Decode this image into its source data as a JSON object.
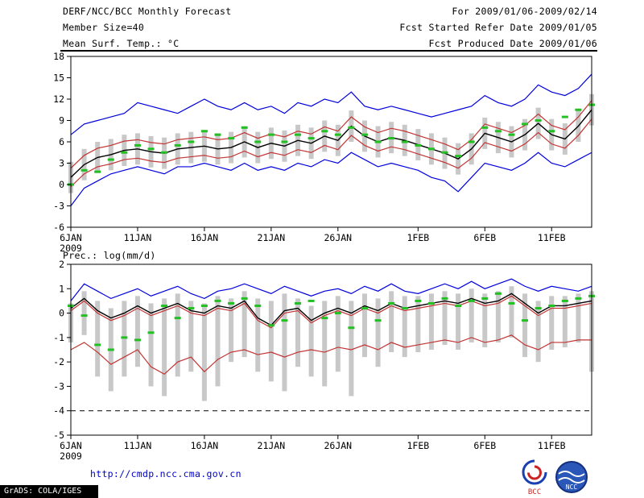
{
  "header": {
    "title": "DERF/NCC/BCC Monthly Forecast",
    "member_size": "Member Size=40",
    "top_var_label": "Mean Surf. Temp.: °C",
    "for_range": "For 2009/01/06-2009/02/14",
    "fcst_started": "Fcst Started Refer Date 2009/01/05",
    "fcst_produced": "Fcst Produced Date 2009/01/06"
  },
  "bottom_var_label": "Prec.: log(mm/d)",
  "footer": {
    "url": "http://cmdp.ncc.cma.gov.cn",
    "grads_credit": "GrADS: COLA/IGES",
    "logo_bcc": "BCC",
    "logo_ncc": "NCC"
  },
  "colors": {
    "envelope": "#0000dd",
    "std_band": "#c23333",
    "mean": "#000000",
    "observation": "#22c022",
    "spread_bar": "#c8c8c8"
  },
  "chart_data": [
    {
      "type": "line",
      "title": "Mean Surf. Temp.: °C",
      "ylabel": "°C",
      "ylim": [
        -6,
        18
      ],
      "yticks": [
        18,
        15,
        12,
        9,
        6,
        3,
        0,
        -3,
        -6
      ],
      "n_days": 40,
      "x_ticks": [
        {
          "label": "6JAN",
          "sub": "2009",
          "day": 0
        },
        {
          "label": "11JAN",
          "day": 5
        },
        {
          "label": "16JAN",
          "day": 10
        },
        {
          "label": "21JAN",
          "day": 15
        },
        {
          "label": "26JAN",
          "day": 20
        },
        {
          "label": "1FEB",
          "day": 26
        },
        {
          "label": "6FEB",
          "day": 31
        },
        {
          "label": "11FEB",
          "day": 36
        }
      ],
      "bars": {
        "name": "ensemble-spread",
        "color": "#c8c8c8",
        "low": [
          -1.2,
          0.6,
          1.6,
          2.0,
          2.6,
          2.8,
          2.4,
          2.2,
          2.8,
          3.0,
          3.2,
          2.8,
          3.0,
          3.8,
          3.0,
          3.6,
          3.2,
          4.0,
          3.6,
          4.6,
          4.0,
          6.0,
          4.6,
          3.8,
          4.4,
          4.0,
          3.4,
          2.8,
          2.2,
          1.4,
          2.8,
          5.0,
          4.4,
          3.8,
          4.8,
          6.4,
          4.8,
          4.2,
          6.0,
          8.3
        ],
        "high": [
          3.2,
          5.0,
          6.0,
          6.4,
          7.0,
          7.2,
          6.8,
          6.6,
          7.2,
          7.4,
          7.6,
          7.2,
          7.4,
          8.2,
          7.4,
          8.0,
          7.6,
          8.4,
          8.0,
          9.0,
          8.4,
          10.4,
          9.0,
          8.2,
          8.8,
          8.4,
          7.8,
          7.2,
          6.6,
          5.8,
          7.2,
          9.4,
          8.8,
          8.2,
          9.2,
          10.8,
          9.2,
          8.6,
          10.4,
          12.7
        ]
      },
      "series": [
        {
          "name": "ensemble-max",
          "color": "#0000dd",
          "width": 1.2,
          "values": [
            7.0,
            8.5,
            9.0,
            9.5,
            10.0,
            11.5,
            11.0,
            10.5,
            10.0,
            11.0,
            12.0,
            11.0,
            10.5,
            11.5,
            10.5,
            11.0,
            10.0,
            11.5,
            11.0,
            12.0,
            11.5,
            13.0,
            11.0,
            10.5,
            11.0,
            10.5,
            10.0,
            9.5,
            10.0,
            10.5,
            11.0,
            12.5,
            11.5,
            11.0,
            12.0,
            14.0,
            13.0,
            12.5,
            13.5,
            15.5
          ]
        },
        {
          "name": "upper-std",
          "color": "#c23333",
          "width": 1.2,
          "values": [
            2.3,
            4.1,
            5.1,
            5.5,
            6.1,
            6.3,
            5.9,
            5.7,
            6.3,
            6.5,
            6.7,
            6.3,
            6.5,
            7.3,
            6.5,
            7.1,
            6.7,
            7.5,
            7.1,
            8.1,
            7.5,
            9.5,
            8.1,
            7.3,
            7.9,
            7.5,
            6.9,
            6.3,
            5.7,
            4.9,
            6.3,
            8.5,
            7.9,
            7.3,
            8.3,
            9.9,
            8.3,
            7.7,
            9.5,
            11.8
          ]
        },
        {
          "name": "ensemble-mean",
          "color": "#000000",
          "width": 1.4,
          "values": [
            1.0,
            2.8,
            3.8,
            4.2,
            4.8,
            5.0,
            4.6,
            4.4,
            5.0,
            5.2,
            5.4,
            5.0,
            5.2,
            6.0,
            5.2,
            5.8,
            5.4,
            6.2,
            5.8,
            6.8,
            6.2,
            8.2,
            6.8,
            6.0,
            6.6,
            6.2,
            5.6,
            5.0,
            4.4,
            3.6,
            5.0,
            7.2,
            6.6,
            6.0,
            7.0,
            8.6,
            7.0,
            6.4,
            8.2,
            10.5
          ]
        },
        {
          "name": "lower-std",
          "color": "#c23333",
          "width": 1.2,
          "values": [
            -0.3,
            1.5,
            2.5,
            2.9,
            3.5,
            3.7,
            3.3,
            3.1,
            3.7,
            3.9,
            4.1,
            3.7,
            3.9,
            4.7,
            3.9,
            4.5,
            4.1,
            4.9,
            4.5,
            5.5,
            4.9,
            6.9,
            5.5,
            4.7,
            5.3,
            4.9,
            4.3,
            3.7,
            3.1,
            2.3,
            3.7,
            5.9,
            5.3,
            4.7,
            5.7,
            7.3,
            5.7,
            5.1,
            6.9,
            9.2
          ]
        },
        {
          "name": "ensemble-min",
          "color": "#0000dd",
          "width": 1.2,
          "values": [
            -3.0,
            -0.5,
            0.5,
            1.5,
            2.0,
            2.5,
            2.0,
            1.5,
            2.5,
            2.5,
            3.0,
            2.5,
            2.0,
            3.0,
            2.0,
            2.5,
            2.0,
            3.0,
            2.5,
            3.5,
            3.0,
            4.5,
            3.5,
            2.5,
            3.0,
            2.5,
            2.0,
            1.0,
            0.5,
            -1.0,
            1.0,
            3.0,
            2.5,
            2.0,
            3.0,
            4.5,
            3.0,
            2.5,
            3.5,
            4.5
          ]
        }
      ],
      "markers": {
        "name": "observation",
        "color": "#22c022",
        "values": [
          0.0,
          2.0,
          1.8,
          3.5,
          4.5,
          5.5,
          5.0,
          4.5,
          5.5,
          6.0,
          7.5,
          7.0,
          6.5,
          8.0,
          6.0,
          7.0,
          6.0,
          7.0,
          6.5,
          7.5,
          7.0,
          8.0,
          7.0,
          6.0,
          6.5,
          6.0,
          5.5,
          5.0,
          4.5,
          4.0,
          6.0,
          8.0,
          7.5,
          7.0,
          8.5,
          9.0,
          7.5,
          9.5,
          10.5,
          11.2
        ]
      }
    },
    {
      "type": "line",
      "title": "Prec.: log(mm/d)",
      "ylabel": "log(mm/d)",
      "ylim": [
        -5,
        2
      ],
      "yticks": [
        2,
        1,
        0,
        -1,
        -2,
        -3,
        -4,
        -5
      ],
      "dashed_line_y": -4,
      "n_days": 40,
      "x_ticks": [
        {
          "label": "6JAN",
          "sub": "2009",
          "day": 0
        },
        {
          "label": "11JAN",
          "day": 5
        },
        {
          "label": "16JAN",
          "day": 10
        },
        {
          "label": "21JAN",
          "day": 15
        },
        {
          "label": "26JAN",
          "day": 20
        },
        {
          "label": "1FEB",
          "day": 26
        },
        {
          "label": "6FEB",
          "day": 31
        },
        {
          "label": "11FEB",
          "day": 36
        }
      ],
      "bars": {
        "name": "ensemble-spread",
        "color": "#c8c8c8",
        "low": [
          -1.2,
          -0.9,
          -2.6,
          -3.2,
          -2.6,
          -2.2,
          -3.0,
          -3.4,
          -2.6,
          -2.4,
          -3.6,
          -3.0,
          -2.0,
          -1.8,
          -2.4,
          -2.8,
          -3.2,
          -2.2,
          -2.6,
          -3.0,
          -2.4,
          -3.4,
          -1.8,
          -2.2,
          -1.6,
          -1.8,
          -1.6,
          -1.5,
          -1.3,
          -1.5,
          -1.2,
          -1.4,
          -1.2,
          -1.0,
          -1.8,
          -2.0,
          -1.5,
          -1.4,
          -1.2,
          -2.4
        ],
        "high": [
          0.4,
          0.9,
          0.5,
          0.2,
          0.5,
          0.7,
          0.4,
          0.6,
          0.8,
          0.5,
          0.4,
          0.7,
          0.6,
          0.9,
          0.6,
          0.5,
          0.8,
          0.6,
          0.3,
          0.5,
          0.7,
          0.5,
          0.8,
          0.6,
          0.9,
          0.7,
          0.7,
          0.8,
          0.9,
          0.8,
          1.0,
          0.8,
          0.9,
          1.1,
          0.8,
          0.5,
          0.7,
          0.7,
          0.8,
          0.9
        ]
      },
      "series": [
        {
          "name": "ensemble-max",
          "color": "#0000dd",
          "width": 1.2,
          "values": [
            0.5,
            1.2,
            0.9,
            0.6,
            0.8,
            1.0,
            0.7,
            0.9,
            1.1,
            0.8,
            0.6,
            0.9,
            1.0,
            1.2,
            1.0,
            0.8,
            1.1,
            0.9,
            0.7,
            0.9,
            1.0,
            0.8,
            1.1,
            0.9,
            1.2,
            0.9,
            0.8,
            1.0,
            1.2,
            1.0,
            1.3,
            1.0,
            1.2,
            1.4,
            1.1,
            0.9,
            1.1,
            1.0,
            0.9,
            1.1
          ]
        },
        {
          "name": "upper-std",
          "color": "#c23333",
          "width": 1.2,
          "values": [
            0.1,
            0.5,
            0.0,
            -0.3,
            -0.1,
            0.2,
            -0.1,
            0.1,
            0.3,
            0.0,
            -0.1,
            0.2,
            0.1,
            0.4,
            -0.3,
            -0.6,
            0.0,
            0.1,
            -0.4,
            -0.1,
            0.1,
            -0.1,
            0.2,
            0.0,
            0.3,
            0.1,
            0.2,
            0.3,
            0.4,
            0.3,
            0.5,
            0.3,
            0.4,
            0.7,
            0.3,
            -0.1,
            0.2,
            0.2,
            0.3,
            0.4
          ]
        },
        {
          "name": "ensemble-mean",
          "color": "#000000",
          "width": 1.4,
          "values": [
            0.2,
            0.6,
            0.1,
            -0.2,
            0.0,
            0.3,
            0.0,
            0.2,
            0.4,
            0.1,
            0.0,
            0.3,
            0.2,
            0.5,
            -0.2,
            -0.5,
            0.1,
            0.2,
            -0.3,
            0.0,
            0.2,
            0.0,
            0.3,
            0.1,
            0.4,
            0.2,
            0.3,
            0.4,
            0.5,
            0.4,
            0.6,
            0.4,
            0.5,
            0.8,
            0.4,
            0.0,
            0.3,
            0.3,
            0.4,
            0.5
          ]
        },
        {
          "name": "lower-std",
          "color": "#c23333",
          "width": 1.2,
          "values": [
            -1.5,
            -1.2,
            -1.6,
            -2.1,
            -1.8,
            -1.5,
            -2.2,
            -2.5,
            -2.0,
            -1.8,
            -2.4,
            -1.9,
            -1.6,
            -1.5,
            -1.7,
            -1.6,
            -1.8,
            -1.6,
            -1.5,
            -1.6,
            -1.4,
            -1.5,
            -1.3,
            -1.5,
            -1.2,
            -1.4,
            -1.3,
            -1.2,
            -1.1,
            -1.2,
            -1.0,
            -1.2,
            -1.1,
            -0.9,
            -1.3,
            -1.5,
            -1.2,
            -1.2,
            -1.1,
            -1.1
          ]
        }
      ],
      "markers": {
        "name": "observation",
        "color": "#22c022",
        "values": [
          0.3,
          -0.1,
          -1.3,
          -1.5,
          -1.0,
          -1.1,
          -0.8,
          0.3,
          -0.2,
          0.2,
          0.3,
          0.5,
          0.4,
          0.6,
          0.3,
          -0.5,
          -0.3,
          0.4,
          0.5,
          -0.2,
          0.0,
          -0.6,
          0.2,
          -0.3,
          0.4,
          0.2,
          0.5,
          0.4,
          0.6,
          0.3,
          0.5,
          0.6,
          0.8,
          0.4,
          -0.3,
          0.2,
          0.3,
          0.5,
          0.6,
          0.7
        ]
      }
    }
  ]
}
